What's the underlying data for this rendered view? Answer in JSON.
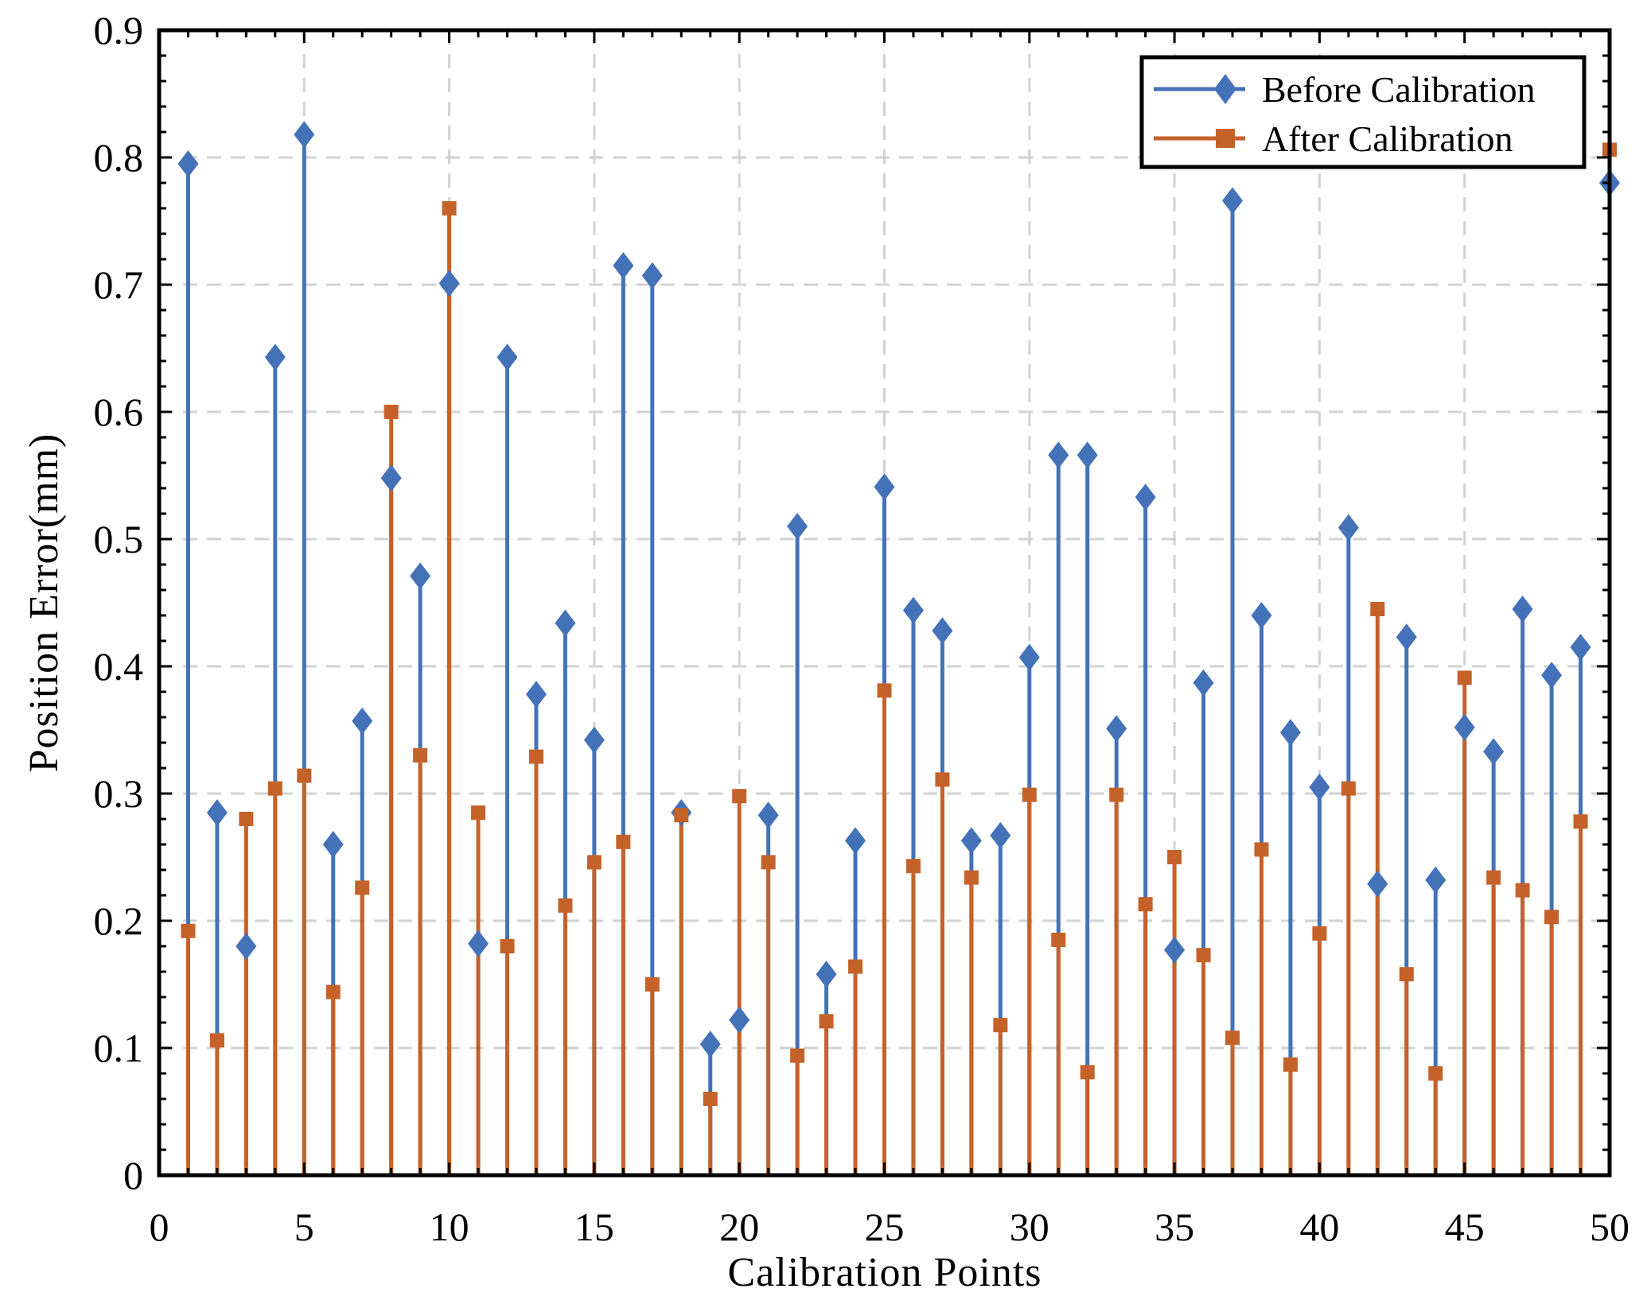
{
  "chart_data": {
    "type": "stem",
    "title": "",
    "xlabel": "Calibration Points",
    "ylabel": "Position Error(mm)",
    "xlim": [
      0,
      50
    ],
    "ylim": [
      0,
      0.9
    ],
    "xticks": [
      0,
      5,
      10,
      15,
      20,
      25,
      30,
      35,
      40,
      45,
      50
    ],
    "yticks": [
      0,
      0.1,
      0.2,
      0.3,
      0.4,
      0.5,
      0.6,
      0.7,
      0.8,
      0.9
    ],
    "xtick_labels": [
      "0",
      "5",
      "10",
      "15",
      "20",
      "25",
      "30",
      "35",
      "40",
      "45",
      "50"
    ],
    "ytick_labels": [
      "0",
      "0.1",
      "0.2",
      "0.3",
      "0.4",
      "0.5",
      "0.6",
      "0.7",
      "0.8",
      "0.9"
    ],
    "grid": true,
    "legend_position": "top-right",
    "x": [
      1,
      2,
      3,
      4,
      5,
      6,
      7,
      8,
      9,
      10,
      11,
      12,
      13,
      14,
      15,
      16,
      17,
      18,
      19,
      20,
      21,
      22,
      23,
      24,
      25,
      26,
      27,
      28,
      29,
      30,
      31,
      32,
      33,
      34,
      35,
      36,
      37,
      38,
      39,
      40,
      41,
      42,
      43,
      44,
      45,
      46,
      47,
      48,
      49,
      50
    ],
    "series": [
      {
        "name": "Before Calibration",
        "color": "#4472b8",
        "marker": "diamond",
        "values": [
          0.795,
          0.285,
          0.18,
          0.643,
          0.818,
          0.26,
          0.357,
          0.548,
          0.471,
          0.701,
          0.182,
          0.643,
          0.378,
          0.434,
          0.342,
          0.715,
          0.707,
          0.285,
          0.103,
          0.122,
          0.283,
          0.51,
          0.158,
          0.263,
          0.541,
          0.444,
          0.428,
          0.263,
          0.267,
          0.407,
          0.566,
          0.566,
          0.351,
          0.533,
          0.177,
          0.387,
          0.766,
          0.44,
          0.348,
          0.305,
          0.509,
          0.229,
          0.423,
          0.232,
          0.352,
          0.333,
          0.445,
          0.393,
          0.415,
          0.78
        ]
      },
      {
        "name": "After Calibration",
        "color": "#c5622a",
        "marker": "square",
        "values": [
          0.192,
          0.106,
          0.28,
          0.304,
          0.314,
          0.144,
          0.226,
          0.6,
          0.33,
          0.76,
          0.285,
          0.18,
          0.329,
          0.212,
          0.246,
          0.262,
          0.15,
          0.283,
          0.06,
          0.298,
          0.246,
          0.094,
          0.121,
          0.164,
          0.381,
          0.243,
          0.311,
          0.234,
          0.118,
          0.299,
          0.185,
          0.081,
          0.299,
          0.213,
          0.25,
          0.173,
          0.108,
          0.256,
          0.087,
          0.19,
          0.304,
          0.445,
          0.158,
          0.08,
          0.391,
          0.234,
          0.224,
          0.203,
          0.278,
          0.806
        ]
      }
    ]
  }
}
